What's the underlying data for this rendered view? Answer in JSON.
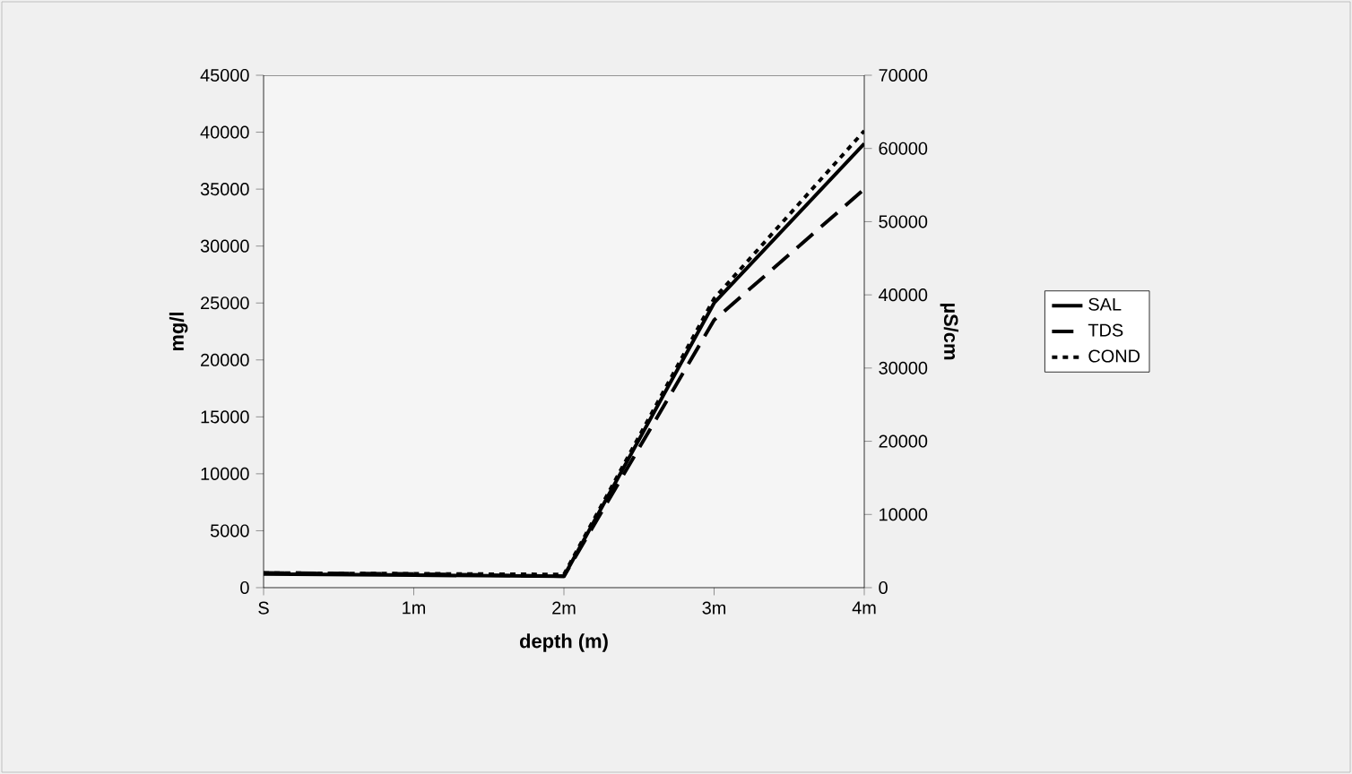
{
  "chart_data": {
    "type": "line",
    "categories": [
      "S",
      "1m",
      "2m",
      "3m",
      "4m"
    ],
    "xlabel": "depth (m)",
    "ylabel": "mg/l",
    "y2label": "µS/cm",
    "ylim": [
      0,
      45000
    ],
    "yticks": [
      0,
      5000,
      10000,
      15000,
      20000,
      25000,
      30000,
      35000,
      40000,
      45000
    ],
    "y2lim": [
      0,
      70000
    ],
    "y2ticks": [
      0,
      10000,
      20000,
      30000,
      40000,
      50000,
      60000,
      70000
    ],
    "legend": "right",
    "series": [
      {
        "name": "SAL",
        "color": "#000000",
        "line_style": "solid",
        "values": [
          1200,
          1100,
          1000,
          25000,
          39000
        ]
      },
      {
        "name": "TDS",
        "color": "#000000",
        "line_style": "dashed",
        "values": [
          1300,
          1200,
          1000,
          23500,
          35000
        ]
      },
      {
        "name": "COND",
        "color": "#000000",
        "line_style": "dotted",
        "axis": "y2",
        "values": [
          2000,
          1900,
          1800,
          39500,
          62400
        ]
      }
    ]
  }
}
